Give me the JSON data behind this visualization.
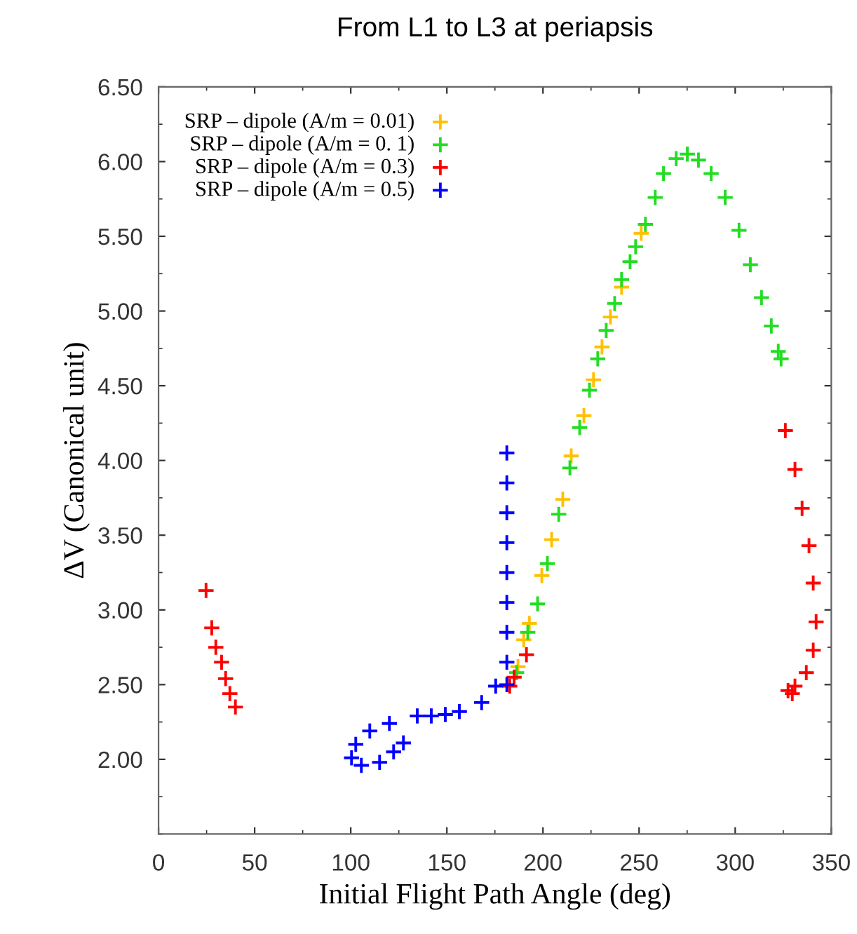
{
  "chart_data": {
    "type": "scatter",
    "title": "From L1 to L3 at periapsis",
    "xlabel": "Initial Flight Path Angle (deg)",
    "ylabel": "ΔV (Canonical unit)",
    "xlim": [
      0,
      350
    ],
    "xticks": [
      0,
      50,
      100,
      150,
      200,
      250,
      300,
      350
    ],
    "ylim": [
      1.5,
      6.5
    ],
    "yticks": [
      {
        "value": 2,
        "label": "2.00"
      },
      {
        "value": 2.5,
        "label": "2.50"
      },
      {
        "value": 3,
        "label": "3.00"
      },
      {
        "value": 3.5,
        "label": "3.50"
      },
      {
        "value": 4,
        "label": "4.00"
      },
      {
        "value": 4.5,
        "label": "4.50"
      },
      {
        "value": 5,
        "label": "5.00"
      },
      {
        "value": 5.5,
        "label": "5.50"
      },
      {
        "value": 6,
        "label": "6.00"
      },
      {
        "value": 6.5,
        "label": "6.50"
      }
    ],
    "grid": false,
    "legend": "top left",
    "marker": "cross",
    "series": [
      {
        "name": "SRP – dipole (A/m = 0.01)",
        "color": "#ffc000",
        "x": [
          187,
          190.0,
          192.9,
          199.4,
          204.5,
          210.3,
          214.7,
          221.3,
          226.3,
          230.7,
          235.1,
          240.9,
          251.1
        ],
        "values": [
          2.62,
          2.8,
          2.91,
          3.23,
          3.47,
          3.74,
          4.03,
          4.3,
          4.54,
          4.76,
          4.96,
          5.16,
          5.52
        ]
      },
      {
        "name": "SRP – dipole (A/m = 0. 1)",
        "color": "#22dd22",
        "x": [
          186.3,
          192.1,
          197.2,
          202.3,
          208.2,
          214.0,
          219.1,
          224.2,
          228.5,
          232.9,
          237.3,
          240.9,
          245.3,
          248.2,
          253.3,
          258.4,
          262.7,
          269.3,
          275.1,
          280.9,
          287.5,
          294.8,
          302.0,
          307.9,
          313.7,
          318.8,
          322.4,
          323.9
        ],
        "values": [
          2.58,
          2.85,
          3.04,
          3.31,
          3.64,
          3.95,
          4.22,
          4.47,
          4.68,
          4.87,
          5.05,
          5.21,
          5.33,
          5.43,
          5.58,
          5.76,
          5.92,
          6.02,
          6.05,
          6.01,
          5.92,
          5.76,
          5.54,
          5.31,
          5.09,
          4.9,
          4.73,
          4.68
        ]
      },
      {
        "name": "SRP – dipole (A/m = 0.3)",
        "color": "#ff0000",
        "x": [
          24.7,
          27.7,
          29.8,
          32.8,
          34.9,
          37.1,
          40.0,
          182.7,
          185,
          191.4,
          326.1,
          331.1,
          334.8,
          338.4,
          340.6,
          342.1,
          340.6,
          337.0,
          331.1,
          327.5,
          329.7
        ],
        "values": [
          3.13,
          2.88,
          2.75,
          2.65,
          2.54,
          2.44,
          2.35,
          2.49,
          2.55,
          2.7,
          4.2,
          3.94,
          3.68,
          3.43,
          3.18,
          2.92,
          2.73,
          2.58,
          2.49,
          2.46,
          2.44
        ]
      },
      {
        "name": "SRP – dipole (A/m = 0.5)",
        "color": "#0000ff",
        "x": [
          181.2,
          181.2,
          181.2,
          181.2,
          181.2,
          181.2,
          181.2,
          181.2,
          181.2,
          175.4,
          168.1,
          156.5,
          149.2,
          141.9,
          134.6,
          120.1,
          109.9,
          102.6,
          100.4,
          105.5,
          115.0,
          122.3,
          127.4
        ],
        "values": [
          4.05,
          3.85,
          3.65,
          3.45,
          3.25,
          3.05,
          2.85,
          2.65,
          2.5,
          2.49,
          2.38,
          2.32,
          2.3,
          2.29,
          2.29,
          2.24,
          2.19,
          2.1,
          2.01,
          1.96,
          1.98,
          2.05,
          2.11
        ]
      }
    ]
  }
}
